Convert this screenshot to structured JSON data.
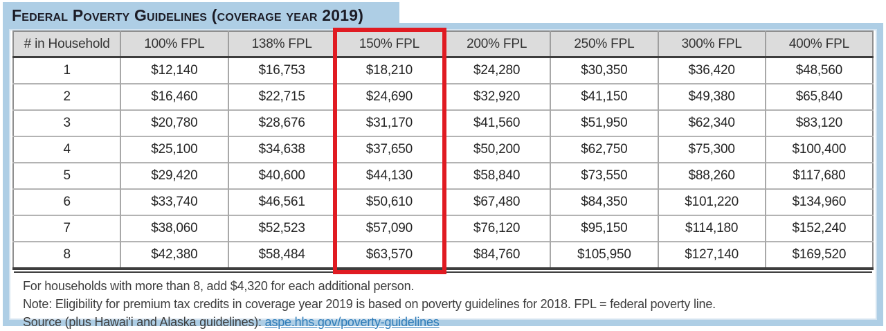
{
  "chart_data": {
    "type": "table",
    "title": "Federal Poverty Guidelines (coverage year 2019)",
    "columns": [
      "# in Household",
      "100% FPL",
      "138% FPL",
      "150% FPL",
      "200% FPL",
      "250% FPL",
      "300% FPL",
      "400% FPL"
    ],
    "highlighted_column": "150% FPL",
    "rows": [
      [
        "1",
        "$12,140",
        "$16,753",
        "$18,210",
        "$24,280",
        "$30,350",
        "$36,420",
        "$48,560"
      ],
      [
        "2",
        "$16,460",
        "$22,715",
        "$24,690",
        "$32,920",
        "$41,150",
        "$49,380",
        "$65,840"
      ],
      [
        "3",
        "$20,780",
        "$28,676",
        "$31,170",
        "$41,560",
        "$51,950",
        "$62,340",
        "$83,120"
      ],
      [
        "4",
        "$25,100",
        "$34,638",
        "$37,650",
        "$50,200",
        "$62,750",
        "$75,300",
        "$100,400"
      ],
      [
        "5",
        "$29,420",
        "$40,600",
        "$44,130",
        "$58,840",
        "$73,550",
        "$88,260",
        "$117,680"
      ],
      [
        "6",
        "$33,740",
        "$46,561",
        "$50,610",
        "$67,480",
        "$84,350",
        "$101,220",
        "$134,960"
      ],
      [
        "7",
        "$38,060",
        "$52,523",
        "$57,090",
        "$76,120",
        "$95,150",
        "$114,180",
        "$152,240"
      ],
      [
        "8",
        "$42,380",
        "$58,484",
        "$63,570",
        "$84,760",
        "$105,950",
        "$127,140",
        "$169,520"
      ]
    ]
  },
  "notes": {
    "line1": "For households with more than 8, add $4,320 for each additional person.",
    "line2": "Note: Eligibility for premium tax credits in coverage year 2019 is based on poverty guidelines for 2018. FPL = federal poverty line.",
    "line3_prefix": "Source (plus Hawai'i and Alaska guidelines): ",
    "link_text": "aspe.hhs.gov/poverty-guidelines"
  },
  "colors": {
    "frame_blue": "#aecee5",
    "frame_inner": "#d3e3f0",
    "header_gray": "#dcdcdc",
    "grid_gray": "#a8a8a8",
    "outer_gray": "#8f8f8f",
    "dark_line": "#3d3d3d",
    "highlight_red": "#e01b22",
    "link_blue": "#2f7cb8",
    "text_dark": "#242424",
    "title_dark": "#1c1c26",
    "note_gray": "#3d3d3d"
  }
}
